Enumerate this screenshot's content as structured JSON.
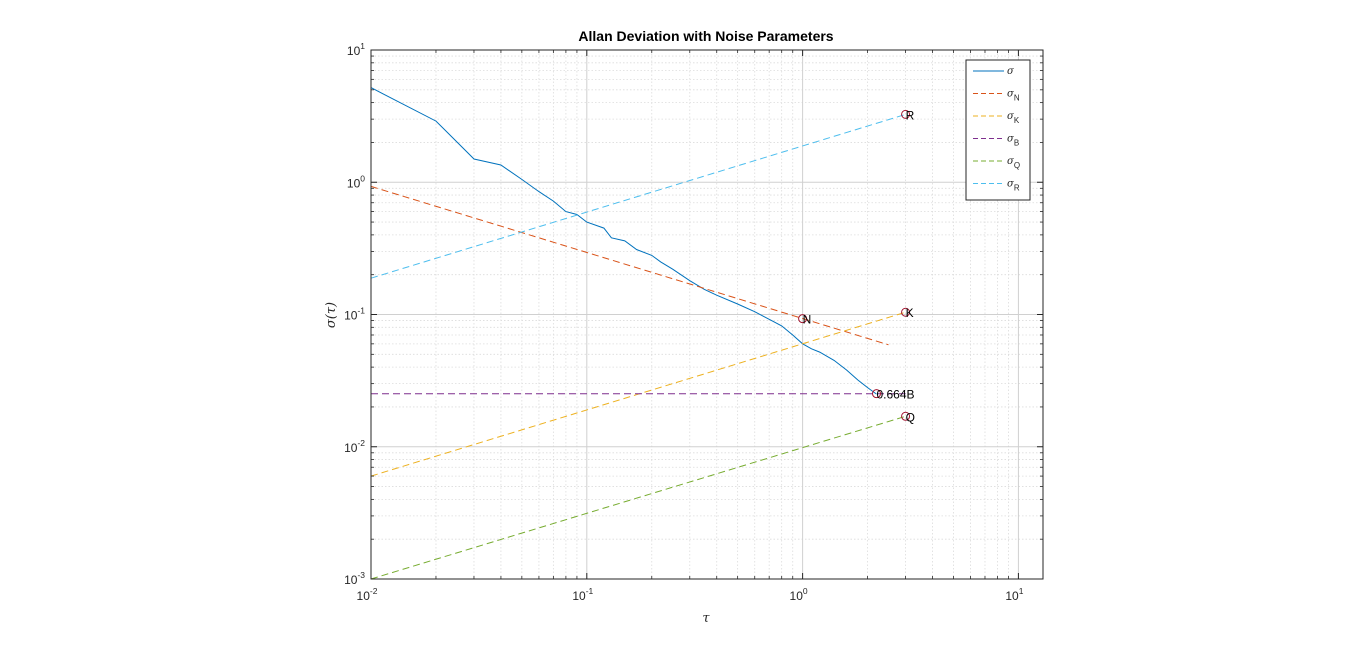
{
  "chart_data": {
    "type": "line",
    "title": "Allan Deviation with Noise Parameters",
    "xlabel": "τ",
    "ylabel": "σ(τ)",
    "xscale": "log",
    "yscale": "log",
    "xlim": [
      0.01,
      13
    ],
    "ylim": [
      0.001,
      10
    ],
    "grid": true,
    "minor_grid": true,
    "legend_position": "top-right",
    "x_ticks": [
      {
        "base": "10",
        "exp": "-2"
      },
      {
        "base": "10",
        "exp": "-1"
      },
      {
        "base": "10",
        "exp": "0"
      },
      {
        "base": "10",
        "exp": "1"
      }
    ],
    "y_ticks": [
      {
        "base": "10",
        "exp": "-3"
      },
      {
        "base": "10",
        "exp": "-2"
      },
      {
        "base": "10",
        "exp": "-1"
      },
      {
        "base": "10",
        "exp": "0"
      },
      {
        "base": "10",
        "exp": "1"
      }
    ],
    "series": [
      {
        "name": "σ",
        "sub": "",
        "style": "solid",
        "color": "#0072BD",
        "points": [
          [
            0.01,
            5.2
          ],
          [
            0.02,
            2.9
          ],
          [
            0.03,
            1.5
          ],
          [
            0.04,
            1.35
          ],
          [
            0.05,
            1.05
          ],
          [
            0.06,
            0.85
          ],
          [
            0.07,
            0.72
          ],
          [
            0.08,
            0.6
          ],
          [
            0.09,
            0.57
          ],
          [
            0.1,
            0.5
          ],
          [
            0.12,
            0.45
          ],
          [
            0.13,
            0.38
          ],
          [
            0.15,
            0.36
          ],
          [
            0.17,
            0.31
          ],
          [
            0.2,
            0.28
          ],
          [
            0.22,
            0.25
          ],
          [
            0.25,
            0.22
          ],
          [
            0.3,
            0.18
          ],
          [
            0.35,
            0.155
          ],
          [
            0.4,
            0.14
          ],
          [
            0.5,
            0.12
          ],
          [
            0.6,
            0.105
          ],
          [
            0.7,
            0.092
          ],
          [
            0.8,
            0.082
          ],
          [
            0.9,
            0.07
          ],
          [
            1.0,
            0.06
          ],
          [
            1.1,
            0.055
          ],
          [
            1.2,
            0.052
          ],
          [
            1.4,
            0.045
          ],
          [
            1.6,
            0.038
          ],
          [
            1.8,
            0.032
          ],
          [
            2.0,
            0.028
          ],
          [
            2.2,
            0.025
          ]
        ]
      },
      {
        "name": "σ",
        "sub": "N",
        "style": "dashed",
        "color": "#D95319",
        "points": [
          [
            0.01,
            0.93
          ],
          [
            2.5,
            0.059
          ]
        ]
      },
      {
        "name": "σ",
        "sub": "K",
        "style": "dashed",
        "color": "#EDB120",
        "points": [
          [
            0.01,
            0.006
          ],
          [
            3.0,
            0.104
          ]
        ]
      },
      {
        "name": "σ",
        "sub": "B",
        "style": "dashed",
        "color": "#7E2F8E",
        "points": [
          [
            0.01,
            0.0252
          ],
          [
            3.0,
            0.0252
          ]
        ]
      },
      {
        "name": "σ",
        "sub": "Q",
        "style": "dashed",
        "color": "#77AC30",
        "points": [
          [
            0.01,
            0.001
          ],
          [
            3.0,
            0.017
          ]
        ]
      },
      {
        "name": "σ",
        "sub": "R",
        "style": "dashed",
        "color": "#4DBEEE",
        "points": [
          [
            0.01,
            0.188
          ],
          [
            3.0,
            3.26
          ]
        ]
      }
    ],
    "markers": [
      {
        "label": "N",
        "x": 1.0,
        "y": 0.093
      },
      {
        "label": "K",
        "x": 3.0,
        "y": 0.104
      },
      {
        "label": "0.664B",
        "x": 2.2,
        "y": 0.0252
      },
      {
        "label": "Q",
        "x": 3.0,
        "y": 0.017
      },
      {
        "label": "R",
        "x": 3.0,
        "y": 3.26
      }
    ],
    "colors": {
      "axes": "#262626",
      "grid": "#dcdcdc",
      "marker": "#A2142F"
    }
  }
}
